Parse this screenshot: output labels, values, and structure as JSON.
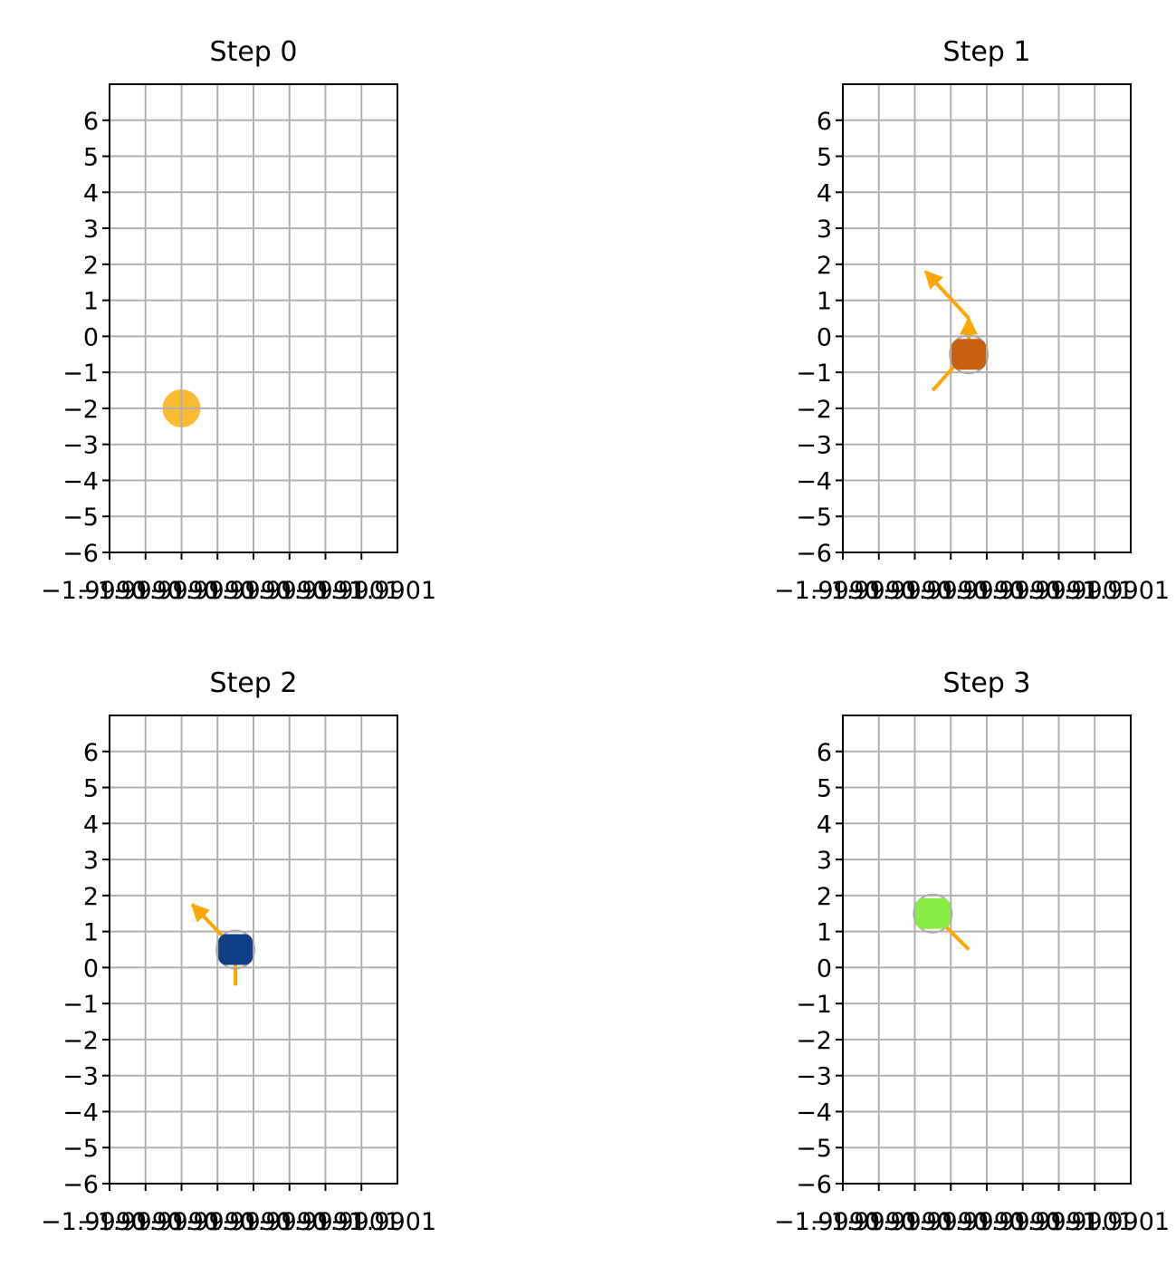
{
  "chart_data": [
    {
      "type": "scatter",
      "title": "Step 0",
      "xlim": [
        -1.999,
        -1.9982
      ],
      "ylim": [
        -6,
        7
      ],
      "yticks": [
        "6",
        "5",
        "4",
        "3",
        "2",
        "1",
        "0",
        "−1",
        "−2",
        "−3",
        "−4",
        "−5",
        "−6"
      ],
      "xticks": [
        "−1.9990",
        "−1.9990",
        "−1.9990",
        "−1.9990",
        "−1.9990",
        "−1.9990",
        "−1.9991",
        "−1.9901",
        "−1.9901",
        "−1.9901",
        "−1.9901",
        "−1.9901",
        "−1.9901",
        "−1.9904",
        "−1.9905",
        "−1.9901",
        "−1.9901",
        "−1.9901",
        "−1.9901",
        "−1.9901",
        "−1.9901",
        "−1.9901",
        "1.9999",
        "1.9990",
        "1.9901",
        "1.9901",
        "1.9901",
        "1.9901",
        "1.9901",
        "1.9901",
        "1.9901",
        "1.9901",
        "1.9901"
      ],
      "grid": true,
      "points": [
        {
          "x": -1.9988,
          "y": -2,
          "shape": "circle",
          "color": "#fbbc33"
        }
      ],
      "arrows": []
    },
    {
      "type": "scatter",
      "title": "Step 1",
      "xlim": [
        -1.999,
        -1.9982
      ],
      "ylim": [
        -6,
        7
      ],
      "yticks": [
        "6",
        "5",
        "4",
        "3",
        "2",
        "1",
        "0",
        "−1",
        "−2",
        "−3",
        "−4",
        "−5",
        "−6"
      ],
      "xticks": [
        "−1.9990",
        "−1.9990",
        "−1.9990",
        "−1.9990",
        "−1.9990",
        "−1.9990",
        "−1.9991",
        "−1.9901",
        "−1.9901",
        "−1.9901",
        "−1.9901",
        "−1.9901",
        "−1.9901",
        "−1.9904",
        "−1.9905",
        "−1.9901",
        "−1.9901",
        "−1.9901",
        "−1.9901",
        "−1.9901",
        "−1.9901",
        "−1.9901",
        "1.9999",
        "1.9990",
        "1.9901",
        "1.9901",
        "1.9901",
        "1.9901",
        "1.9901",
        "1.9901",
        "1.9901",
        "1.9901",
        "1.9901"
      ],
      "grid": true,
      "points": [
        {
          "x": -1.99865,
          "y": -0.5,
          "shape": "square",
          "color": "#c8600f"
        }
      ],
      "arrows": [
        {
          "x1": -1.99865,
          "y1": -0.5,
          "x2": -1.99865,
          "y2": 0.5,
          "head": true
        },
        {
          "x1": -1.99865,
          "y1": 0.5,
          "x2": -1.99877,
          "y2": 1.8,
          "head": true
        },
        {
          "x1": -1.99867,
          "y1": -0.6,
          "x2": -1.99875,
          "y2": -1.5,
          "head": false
        }
      ]
    },
    {
      "type": "scatter",
      "title": "Step 2",
      "xlim": [
        -1.999,
        -1.9982
      ],
      "ylim": [
        -6,
        7
      ],
      "yticks": [
        "6",
        "5",
        "4",
        "3",
        "2",
        "1",
        "0",
        "−1",
        "−2",
        "−3",
        "−4",
        "−5",
        "−6"
      ],
      "xticks": [
        "−1.9990",
        "−1.9990",
        "−1.9990",
        "−1.9990",
        "−1.9990",
        "−1.9990",
        "−1.9991",
        "−1.9901",
        "−1.9901",
        "−1.9901",
        "−1.9901",
        "−1.9901",
        "−1.9901",
        "−1.9904",
        "−1.9905",
        "−1.9901",
        "−1.9901",
        "−1.9901",
        "−1.9901",
        "−1.9901",
        "−1.9901",
        "−1.9901",
        "1.9999",
        "1.9990",
        "1.9901",
        "1.9901",
        "1.9901",
        "1.9901",
        "1.9901",
        "1.9901",
        "1.9901",
        "1.9901",
        "1.9901"
      ],
      "grid": true,
      "points": [
        {
          "x": -1.99865,
          "y": 0.5,
          "shape": "square",
          "color": "#103e86"
        }
      ],
      "arrows": [
        {
          "x1": -1.99865,
          "y1": 0.5,
          "x2": -1.99877,
          "y2": 1.75,
          "head": true
        },
        {
          "x1": -1.99865,
          "y1": 0.2,
          "x2": -1.99865,
          "y2": -0.5,
          "head": false
        }
      ]
    },
    {
      "type": "scatter",
      "title": "Step 3",
      "xlim": [
        -1.999,
        -1.9982
      ],
      "ylim": [
        -6,
        7
      ],
      "yticks": [
        "6",
        "5",
        "4",
        "3",
        "2",
        "1",
        "0",
        "−1",
        "−2",
        "−3",
        "−4",
        "−5",
        "−6"
      ],
      "xticks": [
        "−1.9990",
        "−1.9990",
        "−1.9990",
        "−1.9990",
        "−1.9990",
        "−1.9990",
        "−1.9991",
        "−1.9901",
        "−1.9901",
        "−1.9901",
        "−1.9901",
        "−1.9901",
        "−1.9901",
        "−1.9904",
        "−1.9905",
        "−1.9901",
        "−1.9901",
        "−1.9901",
        "−1.9901",
        "−1.9901",
        "−1.9901",
        "−1.9901",
        "1.9999",
        "1.9990",
        "1.9901",
        "1.9901",
        "1.9901",
        "1.9901",
        "1.9901",
        "1.9901",
        "1.9901",
        "1.9901",
        "1.9901"
      ],
      "grid": true,
      "points": [
        {
          "x": -1.99875,
          "y": 1.5,
          "shape": "square",
          "color": "#88ee44"
        }
      ],
      "arrows": [
        {
          "x1": -1.99872,
          "y1": 1.2,
          "x2": -1.99865,
          "y2": 0.5,
          "head": false
        }
      ]
    }
  ],
  "style": {
    "grid_color": "#b0b0b0",
    "arrow_color": "#ffa500",
    "marker_edge": "#aaaaaa"
  }
}
